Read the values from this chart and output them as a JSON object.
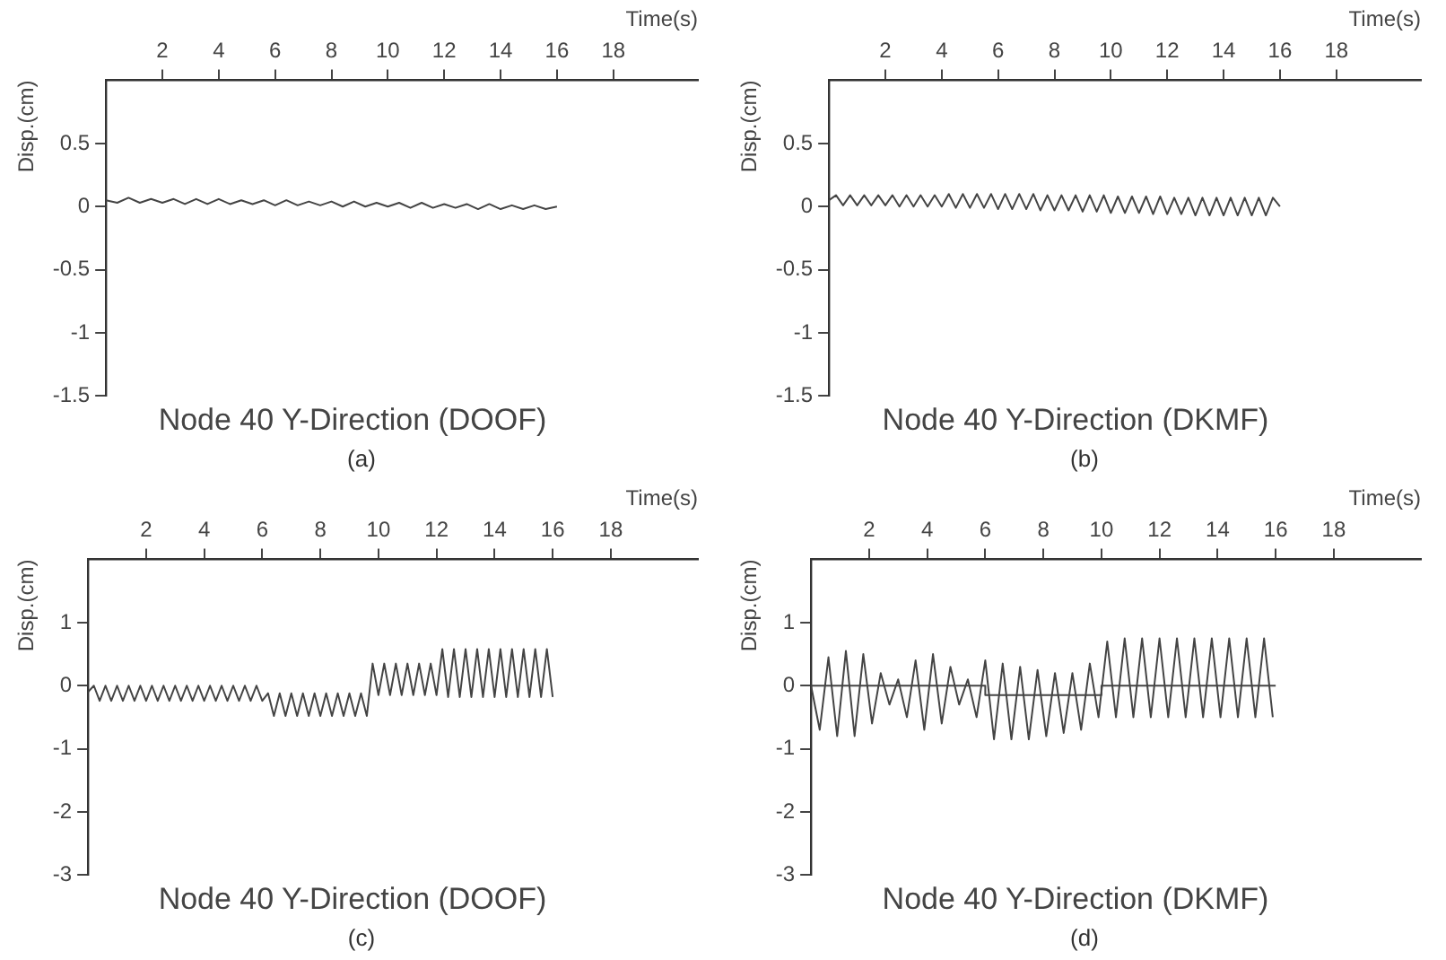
{
  "chart_data": [
    {
      "type": "line",
      "title": "Node 40 Y-Direction (DOOF)",
      "subtitle": "(a)",
      "xlabel": "Time(s)",
      "ylabel": "Disp.(cm)",
      "xlim": [
        0,
        21
      ],
      "xticks": [
        2,
        4,
        6,
        8,
        10,
        12,
        14,
        16,
        18
      ],
      "ylim": [
        -1.5,
        1
      ],
      "yticks": [
        -1.5,
        -1,
        -0.5,
        0,
        0.5
      ],
      "grid": false,
      "marker": "none",
      "series": [
        {
          "color": "#444444",
          "x": [
            0,
            0.4,
            0.8,
            1.2,
            1.6,
            2,
            2.4,
            2.8,
            3.2,
            3.6,
            4,
            4.4,
            4.8,
            5.2,
            5.6,
            6,
            6.4,
            6.8,
            7.2,
            7.6,
            8,
            8.4,
            8.8,
            9.2,
            9.6,
            10,
            10.4,
            10.8,
            11.2,
            11.6,
            12,
            12.4,
            12.8,
            13.2,
            13.6,
            14,
            14.4,
            14.8,
            15.2,
            15.6,
            16
          ],
          "values": [
            0.05,
            0.03,
            0.07,
            0.03,
            0.06,
            0.03,
            0.06,
            0.02,
            0.06,
            0.02,
            0.06,
            0.02,
            0.05,
            0.02,
            0.05,
            0.01,
            0.05,
            0.01,
            0.04,
            0.01,
            0.04,
            0.0,
            0.04,
            0.0,
            0.03,
            0.0,
            0.03,
            -0.01,
            0.03,
            -0.01,
            0.02,
            -0.01,
            0.02,
            -0.02,
            0.02,
            -0.02,
            0.01,
            -0.02,
            0.01,
            -0.02,
            0.0
          ]
        }
      ]
    },
    {
      "type": "line",
      "title": "Node 40 Y-Direction (DKMF)",
      "subtitle": "(b)",
      "xlabel": "Time(s)",
      "ylabel": "Disp.(cm)",
      "xlim": [
        0,
        21
      ],
      "xticks": [
        2,
        4,
        6,
        8,
        10,
        12,
        14,
        16,
        18
      ],
      "ylim": [
        -1.5,
        1
      ],
      "yticks": [
        -1.5,
        -1,
        -0.5,
        0,
        0.5
      ],
      "grid": false,
      "marker": "none",
      "series": [
        {
          "color": "#444444",
          "x": [
            0,
            0.25,
            0.5,
            0.75,
            1,
            1.25,
            1.5,
            1.75,
            2,
            2.25,
            2.5,
            2.75,
            3,
            3.25,
            3.5,
            3.75,
            4,
            4.25,
            4.5,
            4.75,
            5,
            5.25,
            5.5,
            5.75,
            6,
            6.25,
            6.5,
            6.75,
            7,
            7.25,
            7.5,
            7.75,
            8,
            8.25,
            8.5,
            8.75,
            9,
            9.25,
            9.5,
            9.75,
            10,
            10.25,
            10.5,
            10.75,
            11,
            11.25,
            11.5,
            11.75,
            12,
            12.25,
            12.5,
            12.75,
            13,
            13.25,
            13.5,
            13.75,
            14,
            14.25,
            14.5,
            14.75,
            15,
            15.25,
            15.5,
            15.75,
            16
          ],
          "values": [
            0.05,
            0.09,
            0.01,
            0.09,
            0.01,
            0.09,
            0.01,
            0.09,
            0.01,
            0.09,
            0.0,
            0.09,
            0.0,
            0.09,
            0.0,
            0.09,
            0.0,
            0.1,
            -0.01,
            0.1,
            -0.01,
            0.1,
            -0.01,
            0.1,
            -0.02,
            0.1,
            -0.02,
            0.1,
            -0.02,
            0.1,
            -0.03,
            0.09,
            -0.03,
            0.09,
            -0.03,
            0.09,
            -0.04,
            0.09,
            -0.04,
            0.09,
            -0.05,
            0.08,
            -0.05,
            0.08,
            -0.05,
            0.08,
            -0.06,
            0.08,
            -0.06,
            0.07,
            -0.06,
            0.07,
            -0.07,
            0.07,
            -0.07,
            0.07,
            -0.07,
            0.07,
            -0.07,
            0.07,
            -0.07,
            0.07,
            -0.07,
            0.07,
            0.0
          ]
        }
      ]
    },
    {
      "type": "line",
      "title": "Node 40 Y-Direction (DOOF)",
      "subtitle": "(c)",
      "xlabel": "Time(s)",
      "ylabel": "Disp.(cm)",
      "xlim": [
        0,
        21
      ],
      "xticks": [
        2,
        4,
        6,
        8,
        10,
        12,
        14,
        16,
        18
      ],
      "ylim": [
        -3,
        2
      ],
      "yticks": [
        -3,
        -2,
        -1,
        0,
        1
      ],
      "grid": false,
      "marker": "none",
      "series": [
        {
          "color": "#444444",
          "x": [
            0,
            0.2,
            0.4,
            0.6,
            0.8,
            1,
            1.2,
            1.4,
            1.6,
            1.8,
            2,
            2.2,
            2.4,
            2.6,
            2.8,
            3,
            3.2,
            3.4,
            3.6,
            3.8,
            4,
            4.2,
            4.4,
            4.6,
            4.8,
            5,
            5.2,
            5.4,
            5.6,
            5.8,
            6,
            6.2,
            6.4,
            6.6,
            6.8,
            7,
            7.2,
            7.4,
            7.6,
            7.8,
            8,
            8.2,
            8.4,
            8.6,
            8.8,
            9,
            9.2,
            9.4,
            9.6,
            9.8,
            10,
            10.2,
            10.4,
            10.6,
            10.8,
            11,
            11.2,
            11.4,
            11.6,
            11.8,
            12,
            12.2,
            12.4,
            12.6,
            12.8,
            13,
            13.2,
            13.4,
            13.6,
            13.8,
            14,
            14.2,
            14.4,
            14.6,
            14.8,
            15,
            15.2,
            15.4,
            15.6,
            15.8,
            16
          ],
          "values": [
            -0.1,
            0.0,
            -0.24,
            0.0,
            -0.24,
            0.0,
            -0.24,
            0.0,
            -0.24,
            0.0,
            -0.24,
            0.0,
            -0.24,
            0.0,
            -0.24,
            0.0,
            -0.24,
            0.0,
            -0.24,
            0.0,
            -0.24,
            0.0,
            -0.24,
            0.0,
            -0.24,
            0.0,
            -0.24,
            0.0,
            -0.24,
            0.0,
            -0.24,
            -0.12,
            -0.48,
            -0.12,
            -0.48,
            -0.12,
            -0.48,
            -0.12,
            -0.48,
            -0.12,
            -0.48,
            -0.12,
            -0.48,
            -0.12,
            -0.48,
            -0.12,
            -0.48,
            -0.12,
            -0.48,
            0.35,
            -0.15,
            0.35,
            -0.15,
            0.35,
            -0.15,
            0.35,
            -0.15,
            0.35,
            -0.15,
            0.35,
            -0.15,
            0.58,
            -0.18,
            0.58,
            -0.18,
            0.58,
            -0.18,
            0.58,
            -0.18,
            0.58,
            -0.18,
            0.58,
            -0.18,
            0.58,
            -0.18,
            0.58,
            -0.18,
            0.58,
            -0.18,
            0.58,
            -0.18
          ]
        }
      ]
    },
    {
      "type": "line",
      "title": "Node 40 Y-Direction (DKMF)",
      "subtitle": "(d)",
      "xlabel": "Time(s)",
      "ylabel": "Disp.(cm)",
      "xlim": [
        0,
        21
      ],
      "xticks": [
        2,
        4,
        6,
        8,
        10,
        12,
        14,
        16,
        18
      ],
      "ylim": [
        -3,
        2
      ],
      "yticks": [
        -3,
        -2,
        -1,
        0,
        1
      ],
      "grid": false,
      "marker": "none",
      "series": [
        {
          "color": "#444444",
          "x": [
            0,
            0.3,
            0.6,
            0.9,
            1.2,
            1.5,
            1.8,
            2.1,
            2.4,
            2.7,
            3,
            3.3,
            3.6,
            3.9,
            4.2,
            4.5,
            4.8,
            5.1,
            5.4,
            5.7,
            6,
            6.3,
            6.6,
            6.9,
            7.2,
            7.5,
            7.8,
            8.1,
            8.4,
            8.7,
            9,
            9.3,
            9.6,
            9.9,
            10.2,
            10.5,
            10.8,
            11.1,
            11.4,
            11.7,
            12,
            12.3,
            12.6,
            12.9,
            13.2,
            13.5,
            13.8,
            14.1,
            14.4,
            14.7,
            15,
            15.3,
            15.6,
            15.9
          ],
          "values": [
            0,
            -0.7,
            0.45,
            -0.8,
            0.55,
            -0.8,
            0.5,
            -0.6,
            0.2,
            -0.3,
            0.1,
            -0.5,
            0.4,
            -0.7,
            0.5,
            -0.6,
            0.3,
            -0.3,
            0.1,
            -0.5,
            0.4,
            -0.85,
            0.35,
            -0.85,
            0.3,
            -0.85,
            0.25,
            -0.8,
            0.2,
            -0.75,
            0.2,
            -0.7,
            0.35,
            -0.5,
            0.7,
            -0.5,
            0.75,
            -0.5,
            0.75,
            -0.5,
            0.75,
            -0.5,
            0.75,
            -0.5,
            0.75,
            -0.5,
            0.75,
            -0.5,
            0.75,
            -0.5,
            0.75,
            -0.5,
            0.75,
            -0.5
          ]
        },
        {
          "color": "#444444",
          "x": [
            0,
            6,
            6,
            10,
            10,
            16
          ],
          "values": [
            0,
            0,
            -0.15,
            -0.15,
            0,
            0
          ]
        }
      ]
    }
  ]
}
